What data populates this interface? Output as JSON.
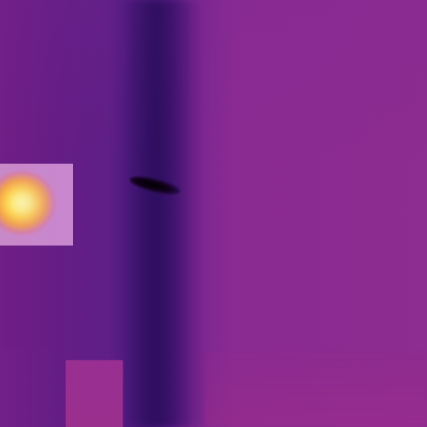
{
  "image": {
    "type": "thermal-camera-view",
    "palette": "ironbow",
    "colors": {
      "background": "#7a2890",
      "cool_shadow": "#431876",
      "hotspot_core": "#ffffa8",
      "hotspot_edge": "#c889c8",
      "dark_blob": "#000000",
      "lower_rect": "#982f91"
    }
  }
}
